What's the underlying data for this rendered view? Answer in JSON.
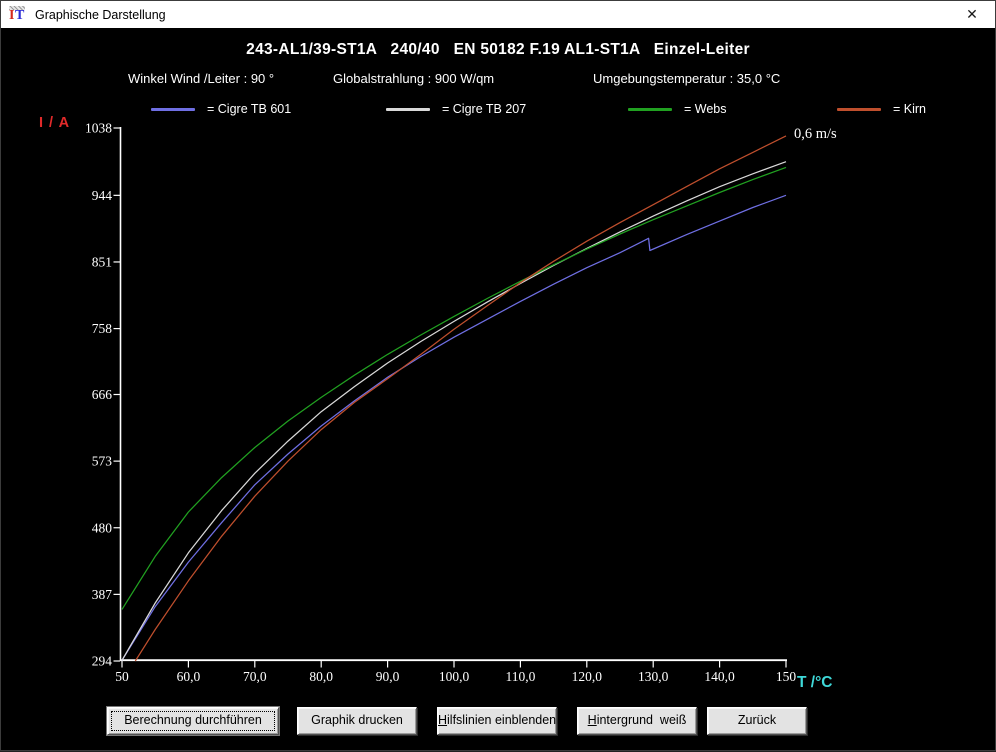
{
  "window": {
    "title": "Graphische Darstellung",
    "close_glyph": "✕"
  },
  "header": {
    "title": "243-AL1/39-ST1A   240/40   EN 50182 F.19 AL1-ST1A   Einzel-Leiter"
  },
  "params": [
    "Winkel Wind /Leiter : 90 °",
    "Globalstrahlung : 900 W/qm",
    "Umgebungstemperatur : 35,0 °C"
  ],
  "legend": [
    {
      "label": "= Cigre TB 601",
      "color": "#6f6fe3"
    },
    {
      "label": "= Cigre TB 207",
      "color": "#d9d9d9"
    },
    {
      "label": "= Webs",
      "color": "#21a121"
    },
    {
      "label": "= Kirn",
      "color": "#bf4f2d"
    }
  ],
  "chart_data": {
    "type": "line",
    "title": "243-AL1/39-ST1A 240/40 EN 50182 F.19 AL1-ST1A Einzel-Leiter",
    "xlabel": "T /°C",
    "ylabel": "I / A",
    "xlim": [
      50,
      150
    ],
    "ylim": [
      294,
      1038
    ],
    "grid": false,
    "legend_position": "top",
    "axis_color": "#ffffff",
    "ylabel_color": "#e12a2a",
    "xlabel_color": "#3fd9d9",
    "x_tick_values": [
      50,
      60,
      70,
      80,
      90,
      100,
      110,
      120,
      130,
      140,
      150
    ],
    "x_ticks": [
      "50",
      "60,0",
      "70,0",
      "80,0",
      "90,0",
      "100,0",
      "110,0",
      "120,0",
      "130,0",
      "140,0",
      "150"
    ],
    "y_ticks": [
      1038,
      944,
      851,
      758,
      666,
      573,
      480,
      387,
      294
    ],
    "annotation": {
      "text": "0,6 m/s",
      "at_T": 151.2,
      "at_I": 1031
    },
    "series": [
      {
        "name": "Cigre TB 601",
        "color": "#6f6fe3",
        "points": [
          [
            50,
            295
          ],
          [
            55,
            370
          ],
          [
            60,
            432
          ],
          [
            65,
            487
          ],
          [
            70,
            540
          ],
          [
            75,
            583
          ],
          [
            80,
            622
          ],
          [
            85,
            657
          ],
          [
            90,
            690
          ],
          [
            95,
            719
          ],
          [
            100,
            746
          ],
          [
            105,
            771
          ],
          [
            110,
            796
          ],
          [
            115,
            820
          ],
          [
            120,
            843
          ],
          [
            125,
            864
          ],
          [
            129.3,
            884
          ],
          [
            129.5,
            867
          ],
          [
            135,
            889
          ],
          [
            140,
            908
          ],
          [
            145,
            927
          ],
          [
            150,
            944
          ]
        ]
      },
      {
        "name": "Cigre TB 207",
        "color": "#d9d9d9",
        "points": [
          [
            50,
            295
          ],
          [
            55,
            375
          ],
          [
            60,
            445
          ],
          [
            65,
            504
          ],
          [
            70,
            556
          ],
          [
            75,
            601
          ],
          [
            80,
            642
          ],
          [
            85,
            677
          ],
          [
            90,
            710
          ],
          [
            95,
            740
          ],
          [
            100,
            768
          ],
          [
            105,
            795
          ],
          [
            110,
            821
          ],
          [
            115,
            846
          ],
          [
            120,
            870
          ],
          [
            125,
            893
          ],
          [
            130,
            915
          ],
          [
            135,
            936
          ],
          [
            140,
            956
          ],
          [
            145,
            974
          ],
          [
            150,
            991
          ]
        ]
      },
      {
        "name": "Webs",
        "color": "#21a121",
        "points": [
          [
            50,
            366
          ],
          [
            55,
            440
          ],
          [
            60,
            502
          ],
          [
            65,
            550
          ],
          [
            70,
            592
          ],
          [
            75,
            629
          ],
          [
            80,
            662
          ],
          [
            85,
            693
          ],
          [
            90,
            722
          ],
          [
            95,
            749
          ],
          [
            100,
            775
          ],
          [
            105,
            800
          ],
          [
            110,
            824
          ],
          [
            115,
            847
          ],
          [
            120,
            869
          ],
          [
            125,
            890
          ],
          [
            130,
            910
          ],
          [
            135,
            929
          ],
          [
            140,
            948
          ],
          [
            145,
            966
          ],
          [
            150,
            983
          ]
        ]
      },
      {
        "name": "Kirn",
        "color": "#bf4f2d",
        "points": [
          [
            52,
            294
          ],
          [
            55,
            338
          ],
          [
            60,
            406
          ],
          [
            65,
            468
          ],
          [
            70,
            524
          ],
          [
            75,
            573
          ],
          [
            80,
            617
          ],
          [
            85,
            655
          ],
          [
            90,
            688
          ],
          [
            95,
            722
          ],
          [
            100,
            757
          ],
          [
            105,
            790
          ],
          [
            110,
            822
          ],
          [
            115,
            852
          ],
          [
            120,
            880
          ],
          [
            125,
            906
          ],
          [
            130,
            931
          ],
          [
            135,
            956
          ],
          [
            140,
            981
          ],
          [
            145,
            1004
          ],
          [
            150,
            1027
          ]
        ]
      }
    ]
  },
  "toolbar": {
    "buttons": [
      {
        "label": "Berechnung durchführen",
        "underline_first": false,
        "focused": true
      },
      {
        "label": "Graphik drucken",
        "underline_first": false,
        "focused": false
      },
      {
        "label": "Hilfslinien einblenden",
        "underline_first": true,
        "focused": false
      },
      {
        "label": "Hintergrund  weiß",
        "underline_first": true,
        "focused": false
      },
      {
        "label": "Zurück",
        "underline_first": false,
        "focused": false
      }
    ]
  }
}
